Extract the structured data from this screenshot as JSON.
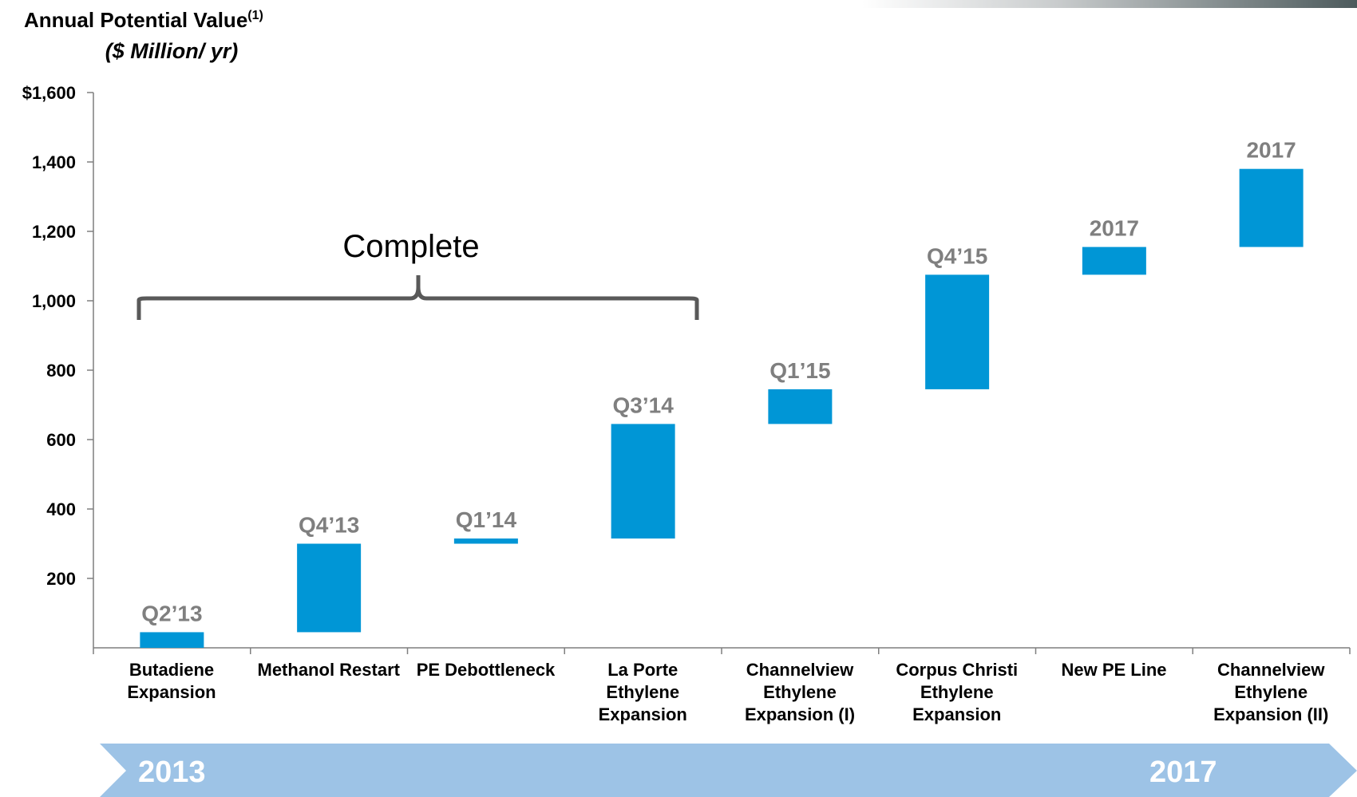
{
  "chart_data": {
    "type": "waterfall",
    "title": "Annual Potential Value",
    "title_note": "(1)",
    "subtitle": "($ Million/ yr)",
    "categories": [
      "Butadiene\nExpansion",
      "Methanol Restart",
      "PE Debottleneck",
      "La Porte\nEthylene\nExpansion",
      "Channelview\nEthylene\nExpansion (I)",
      "Corpus Christi\nEthylene\nExpansion",
      "New PE Line",
      "Channelview\nEthylene\nExpansion (II)"
    ],
    "values": [
      45,
      255,
      15,
      330,
      100,
      330,
      80,
      225
    ],
    "annotations": [
      "Q2’13",
      "Q4’13",
      "Q1’14",
      "Q3’14",
      "Q1’15",
      "Q4’15",
      "2017",
      "2017"
    ],
    "color": "#0096d6",
    "ylim": [
      0,
      1600
    ],
    "yticks": [
      {
        "value": 200,
        "label": "200"
      },
      {
        "value": 400,
        "label": "400"
      },
      {
        "value": 600,
        "label": "600"
      },
      {
        "value": 800,
        "label": "800"
      },
      {
        "value": 1000,
        "label": "1,000"
      },
      {
        "value": 1200,
        "label": "1,200"
      },
      {
        "value": 1400,
        "label": "1,400"
      },
      {
        "value": 1600,
        "label": "$1,600"
      }
    ],
    "bracket_label": "Complete",
    "timeline": [
      "2013",
      "2017"
    ]
  }
}
